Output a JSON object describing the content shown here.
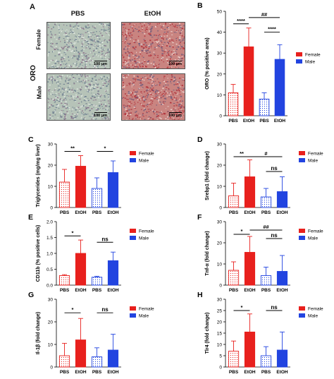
{
  "figure": {
    "panel_A": {
      "letter": "A",
      "col_pbs": "PBS",
      "col_etoh": "EtOH",
      "row_female": "Female",
      "row_male": "Male",
      "stain": "ORO",
      "scale_label": "100 μm",
      "colors": {
        "pbs_tissue": "#b6c3b8",
        "etoh_tissue": "#c98480",
        "stain_red": "#b0303a"
      }
    }
  },
  "colors": {
    "female": "#e8201d",
    "male": "#2244e0"
  },
  "chart_data": [
    {
      "id": "B",
      "letter": "B",
      "type": "bar",
      "ylabel": "ORO (% positive area)",
      "categories": [
        "PBS",
        "EtOH",
        "PBS",
        "EtOH"
      ],
      "values": [
        11,
        33,
        8,
        27
      ],
      "errors": [
        4,
        9,
        3,
        7
      ],
      "ylim": [
        0,
        50
      ],
      "ticks": [
        0,
        10,
        20,
        30,
        40,
        50
      ],
      "legend": [
        "Female",
        "Male"
      ],
      "brackets": [
        {
          "from": 0,
          "to": 1,
          "label": "****",
          "y": 44
        },
        {
          "from": 1,
          "to": 3,
          "label": "##",
          "y": 47
        },
        {
          "from": 2,
          "to": 3,
          "label": "****",
          "y": 40
        }
      ]
    },
    {
      "id": "C",
      "letter": "C",
      "type": "bar",
      "ylabel": "Triglycerides (mg/mg liver)",
      "categories": [
        "PBS",
        "EtOH",
        "PBS",
        "EtOH"
      ],
      "values": [
        12,
        19.5,
        9,
        16.5
      ],
      "errors": [
        6,
        5,
        5,
        5.5
      ],
      "ylim": [
        0,
        30
      ],
      "ticks": [
        0,
        10,
        20,
        30
      ],
      "legend": [
        "Female",
        "Male"
      ],
      "brackets": [
        {
          "from": 0,
          "to": 1,
          "label": "**",
          "y": 26.5
        },
        {
          "from": 2,
          "to": 3,
          "label": "*",
          "y": 26.5
        }
      ]
    },
    {
      "id": "D",
      "letter": "D",
      "type": "bar",
      "ylabel": "Srebp1 (fold change)",
      "categories": [
        "PBS",
        "EtOH",
        "PBS",
        "EtOH"
      ],
      "values": [
        5.5,
        14.5,
        5,
        7.5
      ],
      "errors": [
        6,
        8,
        4,
        7
      ],
      "ylim": [
        0,
        30
      ],
      "ticks": [
        0,
        10,
        20,
        30
      ],
      "legend": [
        "Female",
        "Male"
      ],
      "brackets": [
        {
          "from": 0,
          "to": 1,
          "label": "**",
          "y": 24
        },
        {
          "from": 1,
          "to": 3,
          "label": "#",
          "y": 24
        },
        {
          "from": 2,
          "to": 3,
          "label": "ns",
          "y": 17
        }
      ]
    },
    {
      "id": "E",
      "letter": "E",
      "type": "bar",
      "ylabel": "CD11b (% positive cells)",
      "categories": [
        "PBS",
        "EtOH",
        "PBS",
        "EtOH"
      ],
      "values": [
        0.3,
        1.0,
        0.25,
        0.77
      ],
      "errors": [
        0.03,
        0.42,
        0.03,
        0.27
      ],
      "ylim": [
        0,
        2.0
      ],
      "ticks": [
        0,
        0.5,
        1.0,
        1.5,
        2.0
      ],
      "ticklabels": [
        "0.0",
        "0.5",
        "1.0",
        "1.5",
        "2.0"
      ],
      "legend": [
        "Female",
        "Male"
      ],
      "brackets": [
        {
          "from": 0,
          "to": 1,
          "label": "*",
          "y": 1.55
        },
        {
          "from": 2,
          "to": 3,
          "label": "ns",
          "y": 1.35
        }
      ]
    },
    {
      "id": "F",
      "letter": "F",
      "type": "bar",
      "ylabel": "Tnf-α (fold change)",
      "categories": [
        "PBS",
        "EtOH",
        "PBS",
        "EtOH"
      ],
      "values": [
        7,
        15.5,
        4.5,
        6.5
      ],
      "errors": [
        4,
        7.5,
        4,
        7.5
      ],
      "ylim": [
        0,
        30
      ],
      "ticks": [
        0,
        10,
        20,
        30
      ],
      "legend": [
        "Female",
        "Male"
      ],
      "brackets": [
        {
          "from": 0,
          "to": 1,
          "label": "*",
          "y": 24
        },
        {
          "from": 1,
          "to": 3,
          "label": "##",
          "y": 26
        },
        {
          "from": 2,
          "to": 3,
          "label": "ns",
          "y": 22
        }
      ]
    },
    {
      "id": "G",
      "letter": "G",
      "type": "bar",
      "ylabel": "Il-1β (fold change)",
      "categories": [
        "PBS",
        "EtOH",
        "PBS",
        "EtOH"
      ],
      "values": [
        5,
        12,
        4.5,
        7.5
      ],
      "errors": [
        5.5,
        9.5,
        4,
        7
      ],
      "ylim": [
        0,
        30
      ],
      "ticks": [
        0,
        10,
        20,
        30
      ],
      "legend": [
        "Female",
        "Male"
      ],
      "brackets": [
        {
          "from": 0,
          "to": 1,
          "label": "*",
          "y": 24
        },
        {
          "from": 2,
          "to": 3,
          "label": "ns",
          "y": 24
        }
      ]
    },
    {
      "id": "H",
      "letter": "H",
      "type": "bar",
      "ylabel": "Tlr4 (fold change)",
      "categories": [
        "PBS",
        "EtOH",
        "PBS",
        "EtOH"
      ],
      "values": [
        7,
        15.5,
        5,
        7.5
      ],
      "errors": [
        4.5,
        8,
        4,
        8
      ],
      "ylim": [
        0,
        30
      ],
      "ticks": [
        0,
        5,
        10,
        15,
        20,
        25,
        30
      ],
      "legend": [
        "Female",
        "Male"
      ],
      "brackets": [
        {
          "from": 0,
          "to": 1,
          "label": "*",
          "y": 25
        },
        {
          "from": 2,
          "to": 3,
          "label": "ns",
          "y": 25
        }
      ]
    }
  ]
}
